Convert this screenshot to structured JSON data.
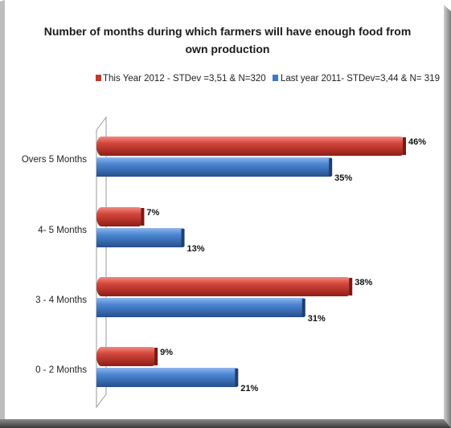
{
  "chart_data": {
    "type": "bar",
    "orientation": "horizontal",
    "title": "Number of months during which farmers will have enough food from own production",
    "title_lines": [
      "Number of months during which farmers will have enough food from",
      "own production"
    ],
    "categories": [
      "Overs 5 Months",
      "4- 5 Months",
      "3 - 4 Months",
      "0 - 2 Months"
    ],
    "series": [
      {
        "name": "This Year 2012 - STDev =3,51 & N=320",
        "color": "#c0392b",
        "values": [
          46,
          7,
          38,
          9
        ],
        "labels": [
          "46%",
          "7%",
          "38%",
          "9%"
        ]
      },
      {
        "name": "Last year 2011- STDev=3,44 & N= 319",
        "color": "#3a78c9",
        "values": [
          35,
          13,
          31,
          21
        ],
        "labels": [
          "35%",
          "13%",
          "31%",
          "21%"
        ]
      }
    ],
    "xlim": [
      0,
      46
    ],
    "legend_position": "top",
    "grid": false
  }
}
